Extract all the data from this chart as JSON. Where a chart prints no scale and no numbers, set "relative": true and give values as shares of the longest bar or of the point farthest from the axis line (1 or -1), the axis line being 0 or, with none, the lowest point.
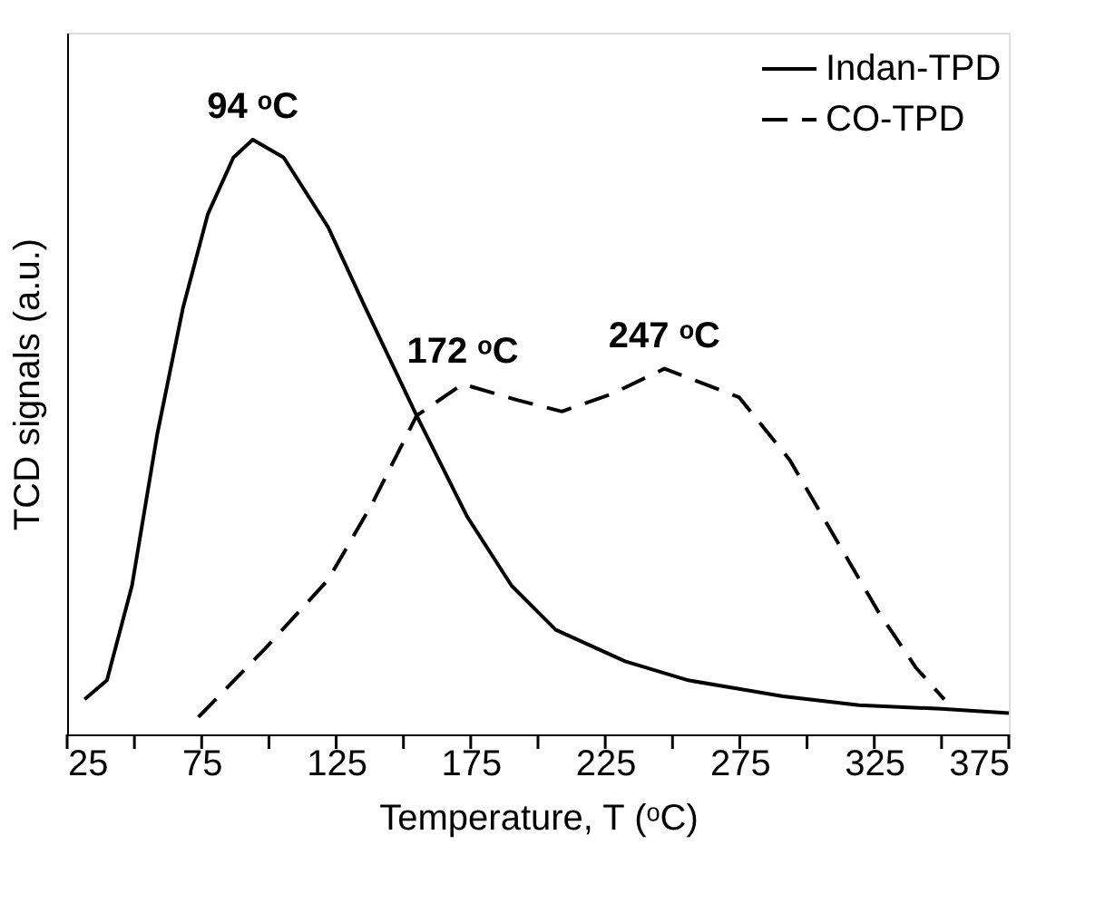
{
  "chart_data": {
    "type": "line",
    "relative": true,
    "xlabel": "Temperature, T (ᵒC)",
    "ylabel": "TCD signals (a.u.)",
    "xlim": [
      25,
      375
    ],
    "xticks": [
      25,
      {
        "value": 50,
        "label": null
      },
      75,
      {
        "value": 100,
        "label": null
      },
      125,
      {
        "value": 150,
        "label": null
      },
      175,
      {
        "value": 200,
        "label": null
      },
      225,
      {
        "value": 250,
        "label": null
      },
      275,
      {
        "value": 300,
        "label": null
      },
      325,
      {
        "value": 350,
        "label": null
      },
      375
    ],
    "grid": false,
    "legend": "top right",
    "marker": "none",
    "series": [
      {
        "name": "Indan-TPD",
        "color": "#000000",
        "line_style": "solid",
        "x": [
          31.5,
          39.8,
          49.1,
          58.5,
          68,
          77.3,
          86.8,
          94,
          105.5,
          122,
          136,
          154.9,
          173.7,
          190.2,
          206.6,
          232.4,
          255.9,
          291.1,
          319.3,
          349.9,
          375
        ],
        "values": [
          0.059,
          0.091,
          0.25,
          0.505,
          0.716,
          0.875,
          0.97,
          1.0,
          0.97,
          0.853,
          0.716,
          0.536,
          0.366,
          0.25,
          0.176,
          0.123,
          0.091,
          0.064,
          0.049,
          0.043,
          0.036
        ]
      },
      {
        "name": "CO-TPD",
        "color": "#000000",
        "line_style": "dashed",
        "x": [
          73.8,
          98.5,
          122,
          138.4,
          154.9,
          172,
          192.5,
          208.9,
          227.7,
          247,
          274.7,
          293.5,
          310,
          326.4,
          340.5,
          351
        ],
        "values": [
          0.029,
          0.144,
          0.26,
          0.388,
          0.536,
          0.589,
          0.562,
          0.543,
          0.573,
          0.615,
          0.567,
          0.462,
          0.334,
          0.207,
          0.112,
          0.059
        ]
      }
    ],
    "annotations": [
      {
        "text": "94 ᵒC",
        "x": 94,
        "y": 1.0
      },
      {
        "text": "172 ᵒC",
        "x": 172,
        "y": 0.589
      },
      {
        "text": "247 ᵒC",
        "x": 247,
        "y": 0.615
      }
    ]
  }
}
